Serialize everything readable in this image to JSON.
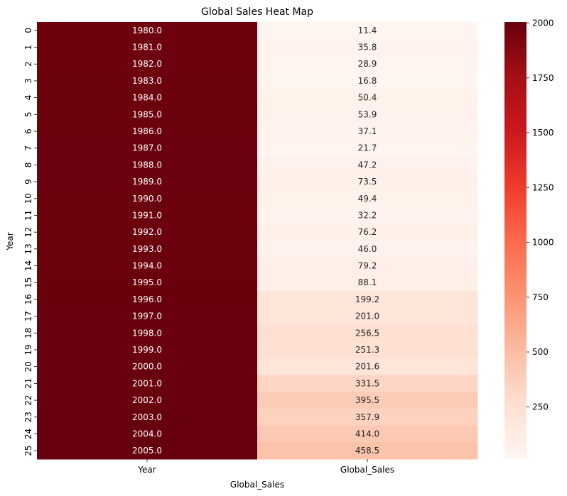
{
  "chart_data": {
    "type": "heatmap",
    "title": "Global Sales Heat Map",
    "xlabel": "Global_Sales",
    "ylabel": "Year",
    "columns": [
      "Year",
      "Global_Sales"
    ],
    "row_labels": [
      "0",
      "1",
      "2",
      "3",
      "4",
      "5",
      "6",
      "7",
      "8",
      "9",
      "10",
      "11",
      "12",
      "13",
      "14",
      "15",
      "16",
      "17",
      "18",
      "19",
      "20",
      "21",
      "22",
      "23",
      "24",
      "25"
    ],
    "rows": [
      [
        1980.0,
        11.4
      ],
      [
        1981.0,
        35.8
      ],
      [
        1982.0,
        28.9
      ],
      [
        1983.0,
        16.8
      ],
      [
        1984.0,
        50.4
      ],
      [
        1985.0,
        53.9
      ],
      [
        1986.0,
        37.1
      ],
      [
        1987.0,
        21.7
      ],
      [
        1988.0,
        47.2
      ],
      [
        1989.0,
        73.5
      ],
      [
        1990.0,
        49.4
      ],
      [
        1991.0,
        32.2
      ],
      [
        1992.0,
        76.2
      ],
      [
        1993.0,
        46.0
      ],
      [
        1994.0,
        79.2
      ],
      [
        1995.0,
        88.1
      ],
      [
        1996.0,
        199.2
      ],
      [
        1997.0,
        201.0
      ],
      [
        1998.0,
        256.5
      ],
      [
        1999.0,
        251.3
      ],
      [
        2000.0,
        201.6
      ],
      [
        2001.0,
        331.5
      ],
      [
        2002.0,
        395.5
      ],
      [
        2003.0,
        357.9
      ],
      [
        2004.0,
        414.0
      ],
      [
        2005.0,
        458.5
      ]
    ],
    "value_format": "0.1f",
    "colormap": "Reds",
    "colormap_stops": [
      "#fff5f0",
      "#fee0d2",
      "#fcbba1",
      "#fc9272",
      "#fb6a4a",
      "#ef3b2c",
      "#cb181d",
      "#a50f15",
      "#67000d"
    ],
    "color_range": [
      11.4,
      2005.0
    ],
    "colorbar_ticks": [
      250,
      500,
      750,
      1000,
      1250,
      1500,
      1750,
      2000
    ],
    "grid": false
  }
}
